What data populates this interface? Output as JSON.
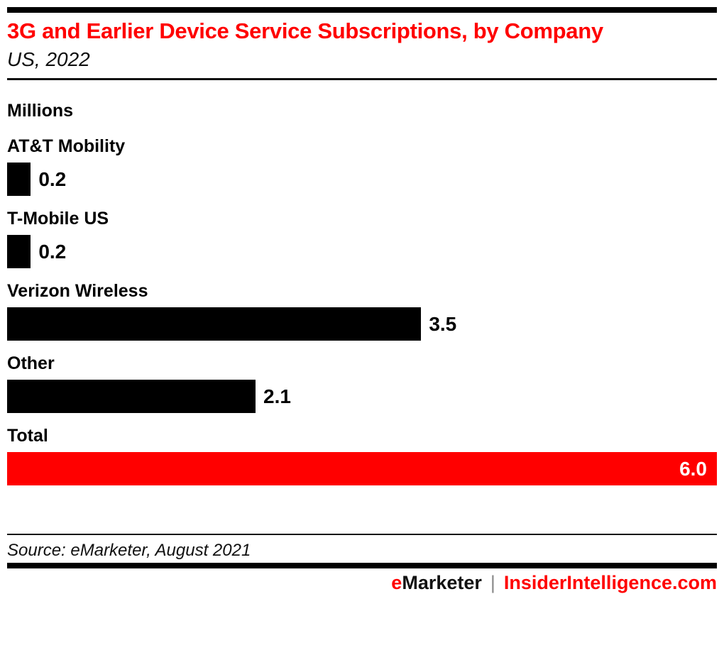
{
  "header": {
    "title": "3G and Earlier Device Service Subscriptions, by Company",
    "subtitle": "US, 2022"
  },
  "chart_data": {
    "type": "bar",
    "orientation": "horizontal",
    "title": "3G and Earlier Device Service Subscriptions, by Company",
    "subtitle": "US, 2022",
    "unit_label": "Millions",
    "categories": [
      "AT&T Mobility",
      "T-Mobile US",
      "Verizon Wireless",
      "Other",
      "Total"
    ],
    "values": [
      0.2,
      0.2,
      3.5,
      2.1,
      6.0
    ],
    "value_labels": [
      "0.2",
      "0.2",
      "3.5",
      "2.1",
      "6.0"
    ],
    "bar_colors": [
      "#000000",
      "#000000",
      "#000000",
      "#000000",
      "#FF0000"
    ],
    "value_inside": [
      false,
      false,
      false,
      false,
      true
    ],
    "xlim": [
      0,
      6.0
    ],
    "grid": false,
    "legend": "none"
  },
  "footer": {
    "source": "Source: eMarketer, August 2021",
    "brand_left_initial": "e",
    "brand_left_rest": "Marketer",
    "separator": "|",
    "brand_right": "InsiderIntelligence.com"
  },
  "colors": {
    "accent_red": "#FF0000",
    "bar_black": "#000000",
    "separator_gray": "#8a8a8a"
  }
}
